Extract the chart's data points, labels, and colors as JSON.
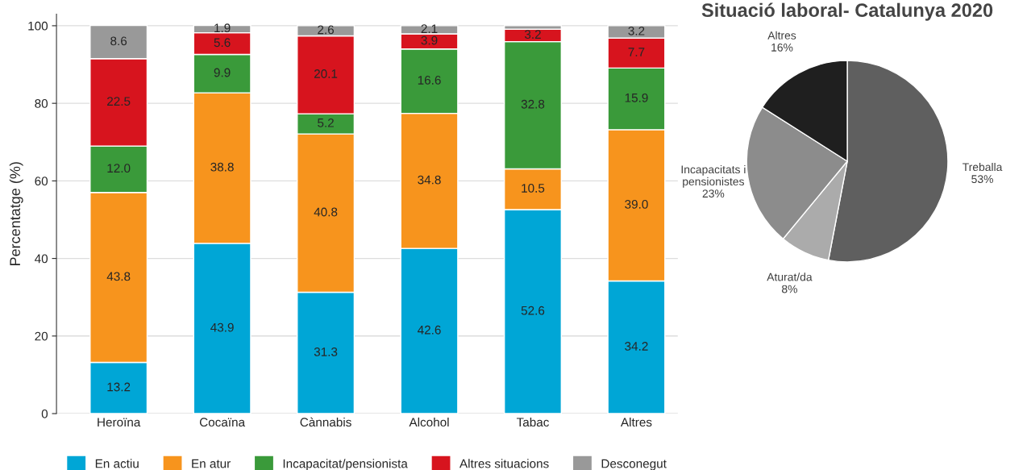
{
  "chart_data": [
    {
      "type": "bar",
      "stacked": true,
      "ylabel": "Percentatge (%)",
      "categories": [
        "Heroïna",
        "Cocaïna",
        "Cànnabis",
        "Alcohol",
        "Tabac",
        "Altres"
      ],
      "ylim": [
        0,
        103
      ],
      "yticks": [
        0,
        20,
        40,
        60,
        80,
        100
      ],
      "grid": "y",
      "legend": "bottom",
      "series": [
        {
          "name": "En actiu",
          "color": "#00a6d6",
          "values": [
            13.2,
            43.9,
            31.3,
            42.6,
            52.6,
            34.2
          ],
          "value_labels": [
            "13.2",
            "43.9",
            "31.3",
            "42.6",
            "52.6",
            "34.2"
          ]
        },
        {
          "name": "En atur",
          "color": "#f7941d",
          "values": [
            43.8,
            38.8,
            40.8,
            34.8,
            10.5,
            39.0
          ],
          "value_labels": [
            "43.8",
            "38.8",
            "40.8",
            "34.8",
            "10.5",
            "39.0"
          ]
        },
        {
          "name": "Incapacitat/pensionista",
          "color": "#3a9a3a",
          "values": [
            12.0,
            9.9,
            5.2,
            16.6,
            32.8,
            15.9
          ],
          "value_labels": [
            "12.0",
            "9.9",
            "5.2",
            "16.6",
            "32.8",
            "15.9"
          ]
        },
        {
          "name": "Altres situacions",
          "color": "#d7141e",
          "values": [
            22.5,
            5.6,
            20.1,
            3.9,
            3.2,
            7.7
          ],
          "value_labels": [
            "22.5",
            "5.6",
            "20.1",
            "3.9",
            "3.2",
            "7.7"
          ]
        },
        {
          "name": "Desconegut",
          "color": "#999999",
          "values": [
            8.6,
            1.9,
            2.6,
            2.1,
            0.9,
            3.2
          ],
          "value_labels": [
            "8.6",
            "1.9",
            "2.6",
            "2.1",
            null,
            "3.2"
          ]
        }
      ]
    },
    {
      "type": "pie",
      "title": "Situació laboral- Catalunya 2020",
      "categories": [
        "Treballa",
        "Aturat/da",
        "Incapacitats i\npensionistes",
        "Altres"
      ],
      "values": [
        53,
        8,
        23,
        16
      ],
      "colors": [
        "#5f5f5f",
        "#ababab",
        "#8c8c8c",
        "#1f1f1f"
      ],
      "value_labels": [
        "53%",
        "8%",
        "23%",
        "16%"
      ]
    }
  ]
}
